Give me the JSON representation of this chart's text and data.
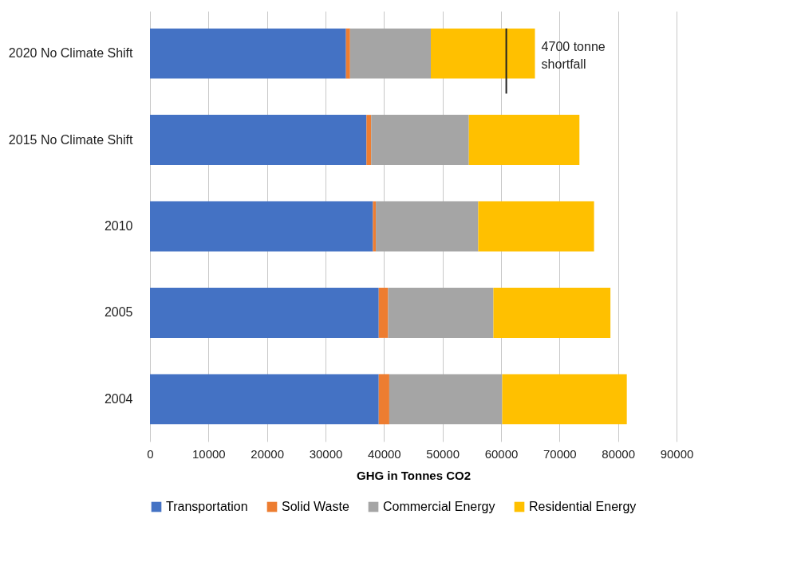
{
  "chart_data": {
    "type": "bar",
    "orientation": "horizontal",
    "stacked": true,
    "xlabel": "GHG in Tonnes CO2",
    "categories": [
      "2020 No Climate Shift",
      "2015 No Climate Shift",
      "2010",
      "2005",
      "2004"
    ],
    "series": [
      {
        "name": "Transportation",
        "color": "#4472c4",
        "values": [
          33500,
          37000,
          38100,
          39100,
          39100
        ]
      },
      {
        "name": "Solid Waste",
        "color": "#ed7d31",
        "values": [
          700,
          800,
          500,
          1600,
          1800
        ]
      },
      {
        "name": "Commercial Energy",
        "color": "#a5a5a5",
        "values": [
          13800,
          16700,
          17500,
          18000,
          19300
        ]
      },
      {
        "name": "Residential Energy",
        "color": "#ffc000",
        "values": [
          17800,
          18900,
          19800,
          20000,
          21300
        ]
      }
    ],
    "xlim": [
      0,
      90000
    ],
    "xticks": [
      0,
      10000,
      20000,
      30000,
      40000,
      50000,
      60000,
      70000,
      80000,
      90000
    ],
    "ref_lines": [
      {
        "axis": "x",
        "value": 60900,
        "label": "4700 tonne shortfall",
        "color": "#222222"
      }
    ],
    "grid": "x",
    "legend": "bottom"
  }
}
